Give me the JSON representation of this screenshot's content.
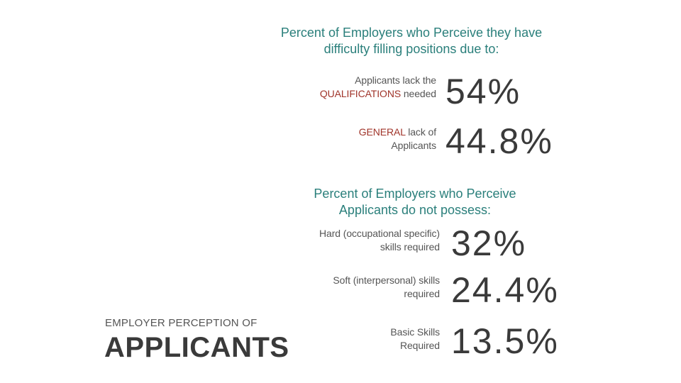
{
  "section1": {
    "heading_line1": "Percent of Employers who Perceive they have",
    "heading_line2": "difficulty filling positions due to:",
    "rows": [
      {
        "line1": "Applicants lack the",
        "line2_highlight": "QUALIFICATIONS",
        "line2_rest": " needed",
        "value": "54%"
      },
      {
        "line1_highlight": "GENERAL",
        "line1_rest": " lack of",
        "line2": "Applicants",
        "value": "44.8%"
      }
    ]
  },
  "section2": {
    "heading_line1": "Percent of Employers who Perceive",
    "heading_line2": "Applicants do not possess:",
    "rows": [
      {
        "line1": "Hard (occupational specific)",
        "line2": "skills required",
        "value": "32%"
      },
      {
        "line1": "Soft (interpersonal) skills",
        "line2": "required",
        "value": "24.4%"
      },
      {
        "line1": "Basic Skills",
        "line2": "Required",
        "value": "13.5%"
      }
    ]
  },
  "footer": {
    "kicker": "EMPLOYER PERCEPTION OF",
    "title": "APPLICANTS"
  },
  "colors": {
    "heading": "#2a7f7b",
    "highlight": "#a0342a",
    "stat": "#3a3a3a"
  }
}
